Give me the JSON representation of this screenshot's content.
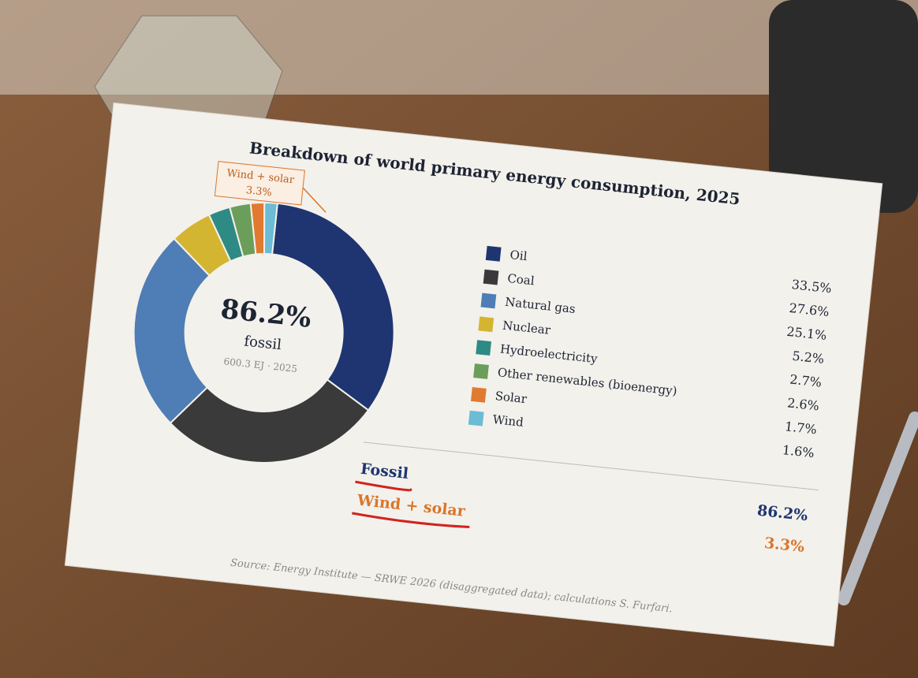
{
  "chart_data": {
    "type": "pie",
    "donut": true,
    "title": "Breakdown of world primary energy consumption, 2025",
    "categories": [
      "Oil",
      "Coal",
      "Natural gas",
      "Nuclear",
      "Hydroelectricity",
      "Other renewables (bioenergy)",
      "Solar",
      "Wind"
    ],
    "values": [
      33.5,
      27.6,
      25.1,
      5.2,
      2.7,
      2.6,
      1.7,
      1.6
    ],
    "value_labels": [
      "33.5%",
      "27.6%",
      "25.1%",
      "5.2%",
      "2.7%",
      "2.6%",
      "1.7%",
      "1.6%"
    ],
    "colors": [
      "#1f3571",
      "#3a3a3a",
      "#4f7db5",
      "#d4b531",
      "#2e8a84",
      "#6b9e5a",
      "#e07a30",
      "#6bbcd4"
    ],
    "center": {
      "value": 86.2,
      "value_label": "86.2%",
      "label": "fossil",
      "sublabel": "600.3 EJ · 2025"
    },
    "callout": {
      "label": "Wind + solar",
      "value": 3.3,
      "value_label": "3.3%"
    },
    "summary": [
      {
        "name": "Fossil",
        "value": 86.2,
        "value_label": "86.2%",
        "color": "#1f3571"
      },
      {
        "name": "Wind + solar",
        "value": 3.3,
        "value_label": "3.3%",
        "color": "#d9762b"
      }
    ],
    "source": "Source: Energy Institute — SRWE 2026 (disaggregated data); calculations S. Furfari."
  }
}
